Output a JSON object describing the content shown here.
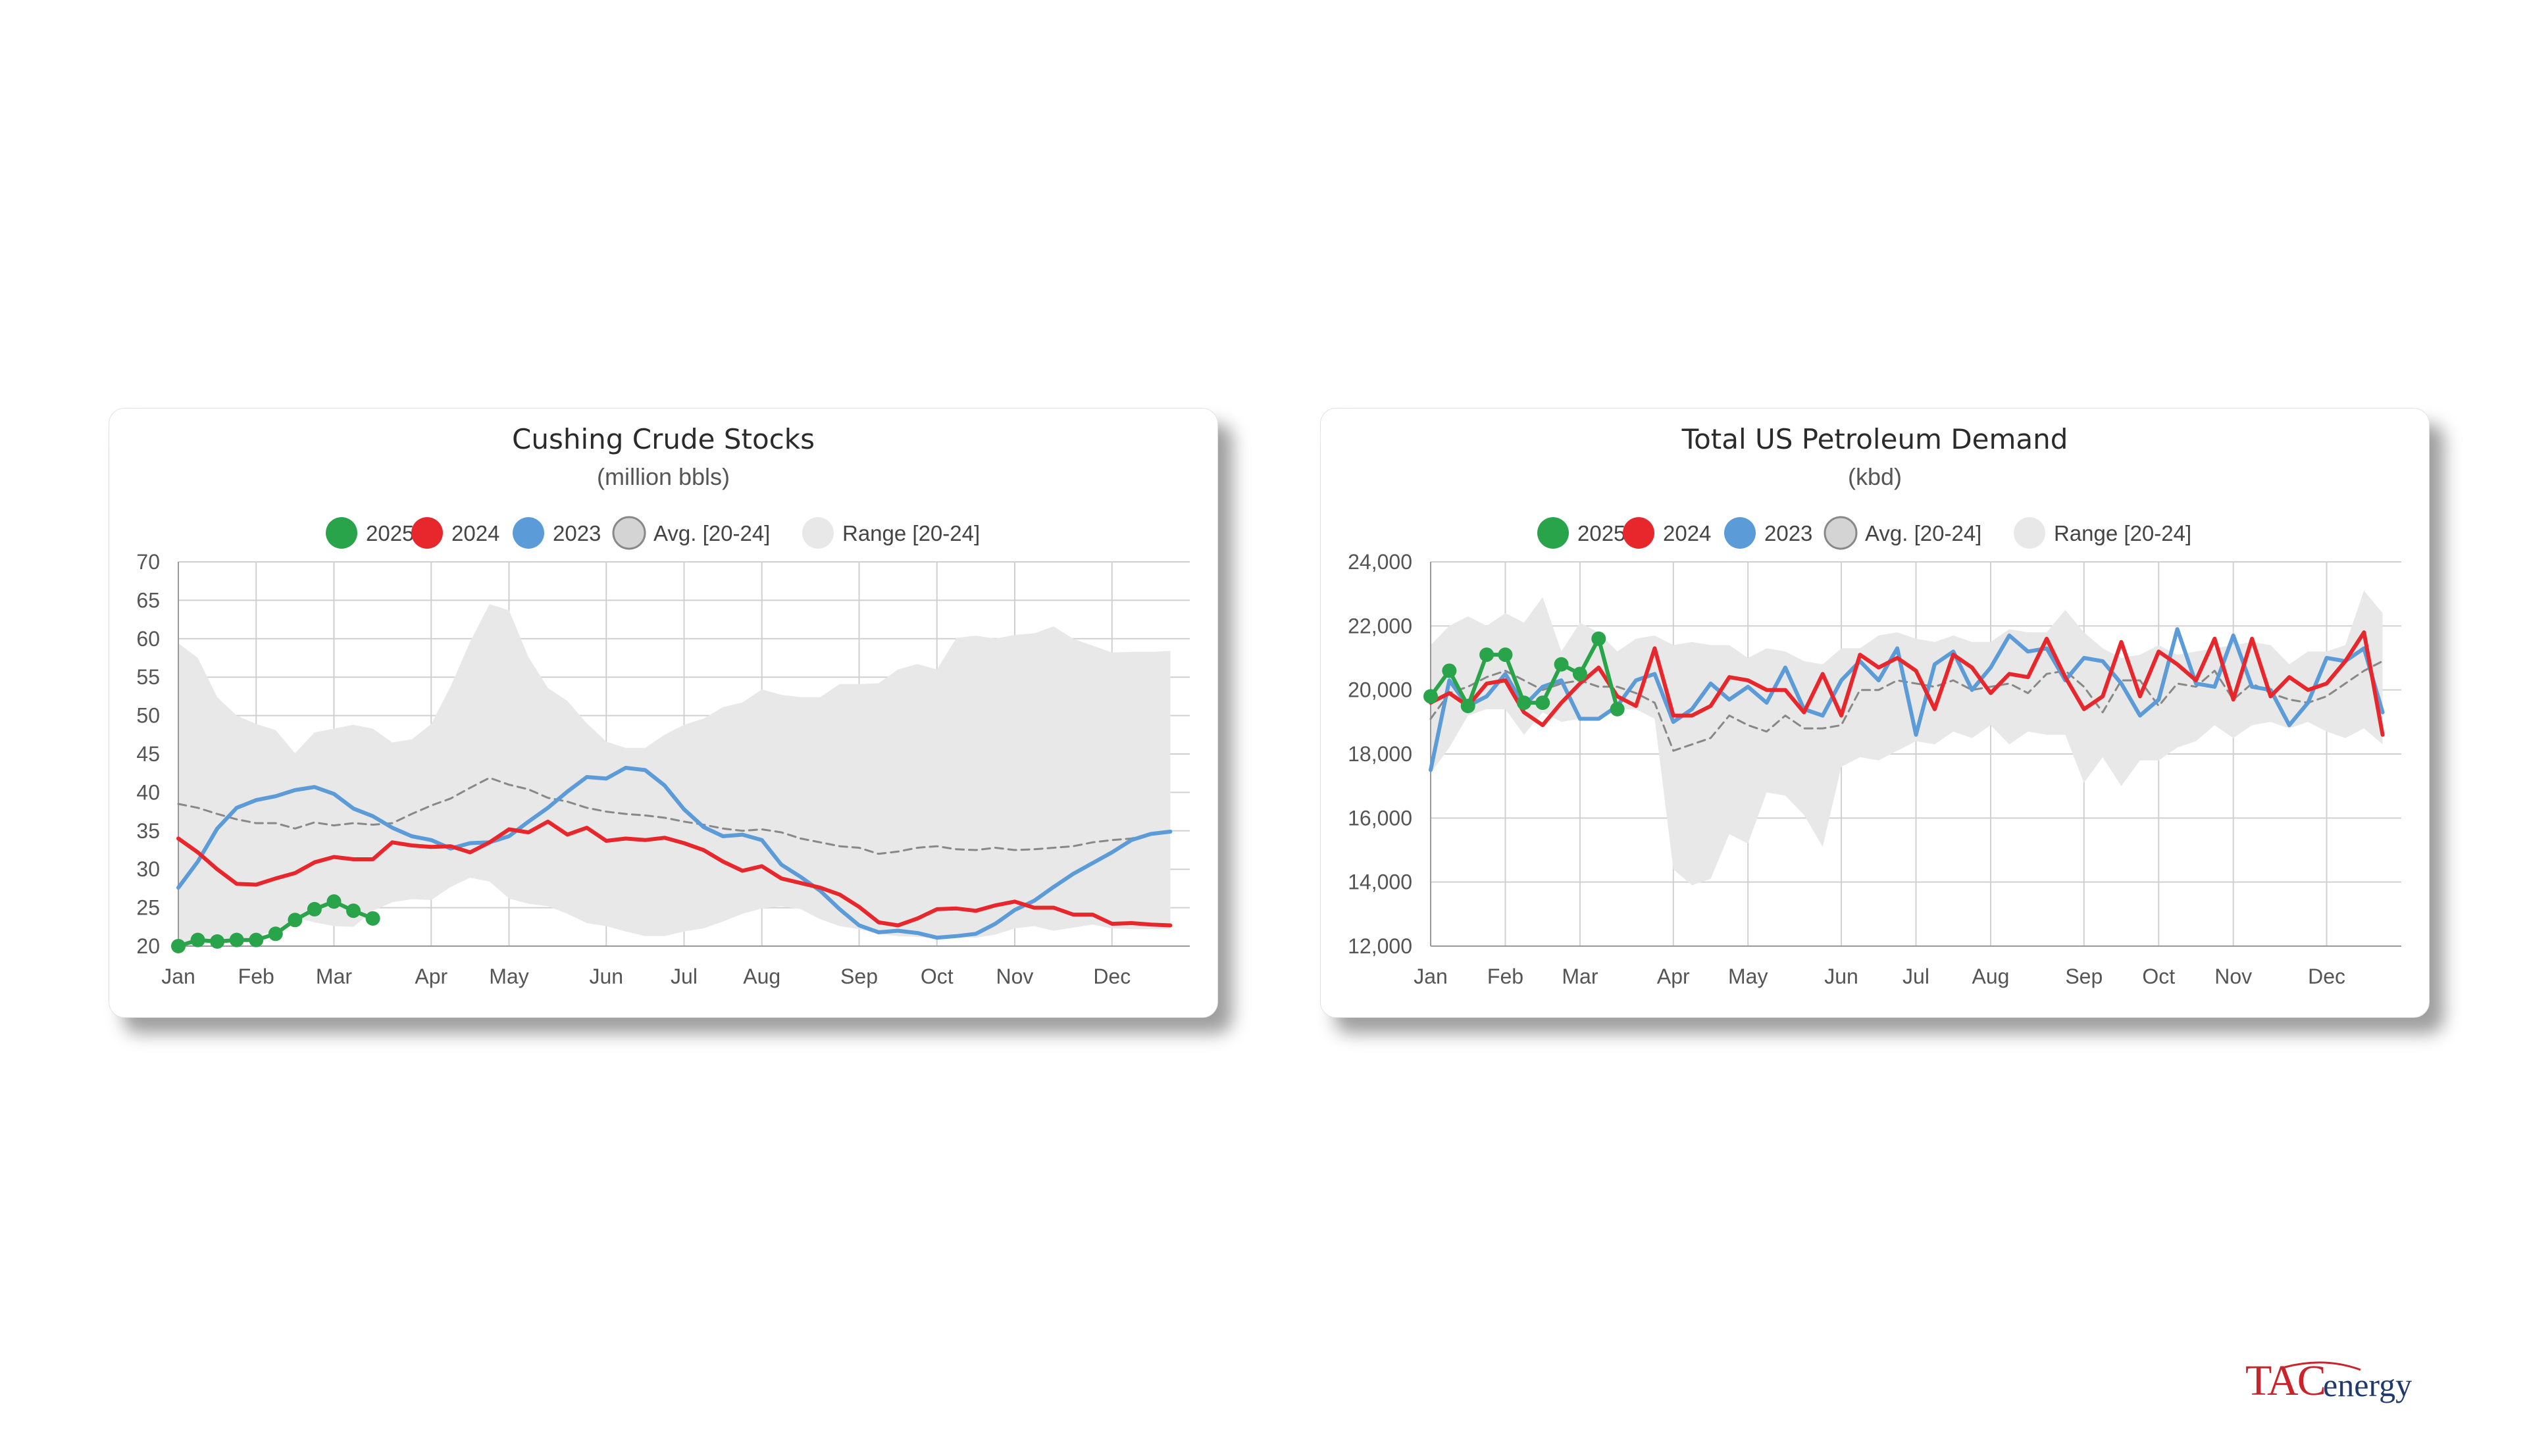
{
  "logo": {
    "tac": "TAC",
    "energy": "energy",
    "tac_color": "#c8242b",
    "energy_color": "#1f3a6b"
  },
  "colors": {
    "y2025": "#2aa44a",
    "y2024": "#e8272d",
    "y2023": "#5b9bd8",
    "avg_fill": "#d4d4d4",
    "avg_stroke": "#888888",
    "range": "#e8e8e8",
    "grid": "#d0d0d0",
    "axis": "#999999"
  },
  "chart_data": [
    {
      "type": "line",
      "title": "Cushing Crude Stocks",
      "subtitle": "(million bbls)",
      "legend": [
        "2025",
        "2024",
        "2023",
        "Avg. [20-24]",
        "Range [20-24]"
      ],
      "xlim": [
        0,
        52
      ],
      "ylim": [
        20,
        70
      ],
      "yticks": [
        20,
        25,
        30,
        35,
        40,
        45,
        50,
        55,
        60,
        65,
        70
      ],
      "ytick_labels": [
        "20",
        "25",
        "30",
        "35",
        "40",
        "45",
        "50",
        "55",
        "60",
        "65",
        "70"
      ],
      "months": [
        "Jan",
        "Feb",
        "Mar",
        "Apr",
        "May",
        "Jun",
        "Jul",
        "Aug",
        "Sep",
        "Oct",
        "Nov",
        "Dec"
      ],
      "month_weeks": [
        0,
        4,
        8,
        13,
        17,
        22,
        26,
        30,
        35,
        39,
        43,
        48
      ],
      "series": [
        {
          "name": "2025",
          "markers": true,
          "values": [
            20.0,
            20.8,
            20.6,
            20.8,
            20.8,
            21.6,
            23.4,
            24.8,
            25.8,
            24.6,
            23.6
          ]
        },
        {
          "name": "2024",
          "values": [
            34.0,
            32.2,
            30.0,
            28.1,
            28.0,
            28.8,
            29.5,
            30.9,
            31.6,
            31.3,
            31.3,
            33.5,
            33.1,
            32.9,
            33.0,
            32.2,
            33.5,
            35.2,
            34.8,
            36.2,
            34.5,
            35.4,
            33.7,
            34.0,
            33.8,
            34.1,
            33.4,
            32.5,
            31.0,
            29.8,
            30.4,
            28.8,
            28.2,
            27.6,
            26.7,
            25.1,
            23.1,
            22.7,
            23.6,
            24.8,
            24.9,
            24.6,
            25.3,
            25.8,
            25.0,
            25.0,
            24.1,
            24.1,
            22.9,
            23.0,
            22.8,
            22.7
          ]
        },
        {
          "name": "2023",
          "values": [
            27.6,
            31.0,
            35.3,
            38.0,
            39.0,
            39.5,
            40.3,
            40.7,
            39.8,
            37.9,
            36.9,
            35.4,
            34.3,
            33.8,
            32.7,
            33.4,
            33.5,
            34.3,
            36.2,
            38.0,
            40.1,
            42.0,
            41.8,
            43.2,
            42.9,
            40.9,
            37.8,
            35.5,
            34.3,
            34.5,
            33.8,
            30.6,
            29.0,
            27.2,
            24.8,
            22.7,
            21.8,
            22.0,
            21.7,
            21.1,
            21.3,
            21.6,
            22.9,
            24.7,
            25.9,
            27.7,
            29.4,
            30.8,
            32.2,
            33.8,
            34.6,
            34.9
          ]
        },
        {
          "name": "Avg. [20-24]",
          "dashed": true,
          "values": [
            38.5,
            38.0,
            37.2,
            36.5,
            36.0,
            36.0,
            35.3,
            36.1,
            35.7,
            36.0,
            35.8,
            36.0,
            37.2,
            38.3,
            39.2,
            40.6,
            41.9,
            41.0,
            40.4,
            39.3,
            38.8,
            38.0,
            37.5,
            37.2,
            37.0,
            36.7,
            36.2,
            35.8,
            35.3,
            35.0,
            35.2,
            34.8,
            34.0,
            33.5,
            33.0,
            32.8,
            32.0,
            32.3,
            32.8,
            33.0,
            32.6,
            32.5,
            32.8,
            32.5,
            32.6,
            32.8,
            33.0,
            33.5,
            33.8,
            34.0,
            34.6,
            34.9
          ]
        },
        {
          "name": "Range [20-24]",
          "band": true,
          "upper": [
            59.4,
            57.5,
            52.4,
            50.0,
            48.9,
            48.1,
            45.1,
            47.8,
            48.3,
            48.8,
            48.3,
            46.5,
            46.9,
            48.9,
            53.8,
            59.6,
            64.5,
            63.7,
            57.6,
            53.6,
            51.9,
            49.0,
            46.6,
            45.8,
            45.8,
            47.5,
            48.8,
            49.6,
            51.1,
            51.7,
            53.4,
            52.7,
            52.4,
            52.4,
            54.1,
            54.1,
            54.2,
            56.0,
            56.7,
            56.0,
            60.1,
            60.4,
            60.0,
            60.5,
            60.7,
            61.6,
            60.0,
            59.1,
            58.2,
            58.3,
            58.3,
            58.4
          ],
          "lower": [
            20.0,
            20.1,
            20.4,
            20.7,
            21.3,
            22.0,
            23.7,
            23.1,
            22.6,
            22.5,
            24.6,
            25.7,
            26.1,
            26.0,
            27.7,
            28.9,
            28.4,
            26.2,
            25.5,
            25.2,
            24.2,
            23.0,
            22.6,
            21.9,
            21.3,
            21.3,
            21.9,
            22.3,
            23.2,
            24.2,
            24.9,
            25.2,
            24.8,
            23.5,
            22.6,
            22.2,
            21.6,
            21.3,
            21.2,
            21.0,
            21.1,
            21.1,
            21.5,
            22.3,
            22.6,
            22.0,
            22.4,
            22.8,
            22.3,
            22.2,
            22.2,
            22.2
          ]
        }
      ]
    },
    {
      "type": "line",
      "title": "Total US Petroleum Demand",
      "subtitle": "(kbd)",
      "legend": [
        "2025",
        "2024",
        "2023",
        "Avg. [20-24]",
        "Range [20-24]"
      ],
      "xlim": [
        0,
        52
      ],
      "ylim": [
        12000,
        24000
      ],
      "yticks": [
        12000,
        14000,
        16000,
        18000,
        20000,
        22000,
        24000
      ],
      "ytick_labels": [
        "12,000",
        "14,000",
        "16,000",
        "18,000",
        "20,000",
        "22,000",
        "24,000"
      ],
      "months": [
        "Jan",
        "Feb",
        "Mar",
        "Apr",
        "May",
        "Jun",
        "Jul",
        "Aug",
        "Sep",
        "Oct",
        "Nov",
        "Dec"
      ],
      "month_weeks": [
        0,
        4,
        8,
        13,
        17,
        22,
        26,
        30,
        35,
        39,
        43,
        48
      ],
      "series": [
        {
          "name": "2025",
          "markers": true,
          "values": [
            19800,
            20600,
            19500,
            21100,
            21100,
            19600,
            19600,
            20800,
            20500,
            21600,
            19400
          ]
        },
        {
          "name": "2024",
          "values": [
            19600,
            19900,
            19500,
            20200,
            20300,
            19300,
            18900,
            19600,
            20200,
            20700,
            19800,
            19500,
            21300,
            19200,
            19200,
            19500,
            20400,
            20300,
            20000,
            20000,
            19300,
            20500,
            19200,
            21100,
            20700,
            21000,
            20600,
            19400,
            21100,
            20700,
            19900,
            20500,
            20400,
            21600,
            20400,
            19400,
            19800,
            21500,
            19800,
            21200,
            20800,
            20300,
            21600,
            19700,
            21600,
            19800,
            20400,
            20000,
            20200,
            20900,
            21800,
            18600
          ]
        },
        {
          "name": "2023",
          "values": [
            17500,
            20300,
            19500,
            19800,
            20500,
            19500,
            20100,
            20300,
            19100,
            19100,
            19500,
            20300,
            20500,
            19000,
            19400,
            20200,
            19700,
            20100,
            19600,
            20700,
            19400,
            19200,
            20300,
            20900,
            20300,
            21300,
            18600,
            20800,
            21200,
            20000,
            20700,
            21700,
            21200,
            21300,
            20300,
            21000,
            20900,
            20200,
            19200,
            19700,
            21900,
            20200,
            20100,
            21700,
            20100,
            20000,
            18900,
            19600,
            21000,
            20900,
            21300,
            19300
          ]
        },
        {
          "name": "Avg. [20-24]",
          "dashed": true,
          "values": [
            19100,
            19900,
            20100,
            20400,
            20600,
            20300,
            20000,
            20200,
            20300,
            20100,
            20100,
            19900,
            19600,
            18100,
            18300,
            18500,
            19200,
            18900,
            18700,
            19200,
            18800,
            18800,
            18900,
            20000,
            20000,
            20300,
            20200,
            20100,
            20300,
            20000,
            20100,
            20200,
            19900,
            20500,
            20600,
            20100,
            19300,
            20300,
            20300,
            19500,
            20200,
            20100,
            20600,
            19700,
            20200,
            19900,
            19700,
            19600,
            19800,
            20200,
            20600,
            20900
          ]
        },
        {
          "name": "Range [20-24]",
          "band": true,
          "upper": [
            21400,
            22000,
            22300,
            22000,
            22400,
            22100,
            22900,
            21200,
            22100,
            21800,
            21200,
            21600,
            21700,
            21400,
            21500,
            21400,
            21400,
            21000,
            21300,
            21200,
            20900,
            20800,
            21300,
            21300,
            21700,
            21800,
            21600,
            21500,
            21700,
            21500,
            21500,
            21900,
            21800,
            21800,
            22500,
            21800,
            21300,
            21000,
            21100,
            21400,
            21100,
            21200,
            21300,
            21400,
            21500,
            21400,
            20800,
            21200,
            21200,
            21400,
            23100,
            22400
          ],
          "lower": [
            17400,
            18200,
            19200,
            19400,
            19400,
            18600,
            19300,
            19000,
            19100,
            19100,
            19400,
            19400,
            19100,
            14400,
            13900,
            14100,
            15500,
            15200,
            16800,
            16700,
            16100,
            15100,
            17600,
            17900,
            17800,
            18100,
            18400,
            18300,
            18700,
            18500,
            18900,
            18300,
            18700,
            18600,
            18600,
            17100,
            17900,
            17000,
            17800,
            17800,
            18200,
            18400,
            18900,
            18500,
            18900,
            19000,
            18800,
            19000,
            18700,
            18500,
            18800,
            18300
          ]
        }
      ]
    }
  ]
}
